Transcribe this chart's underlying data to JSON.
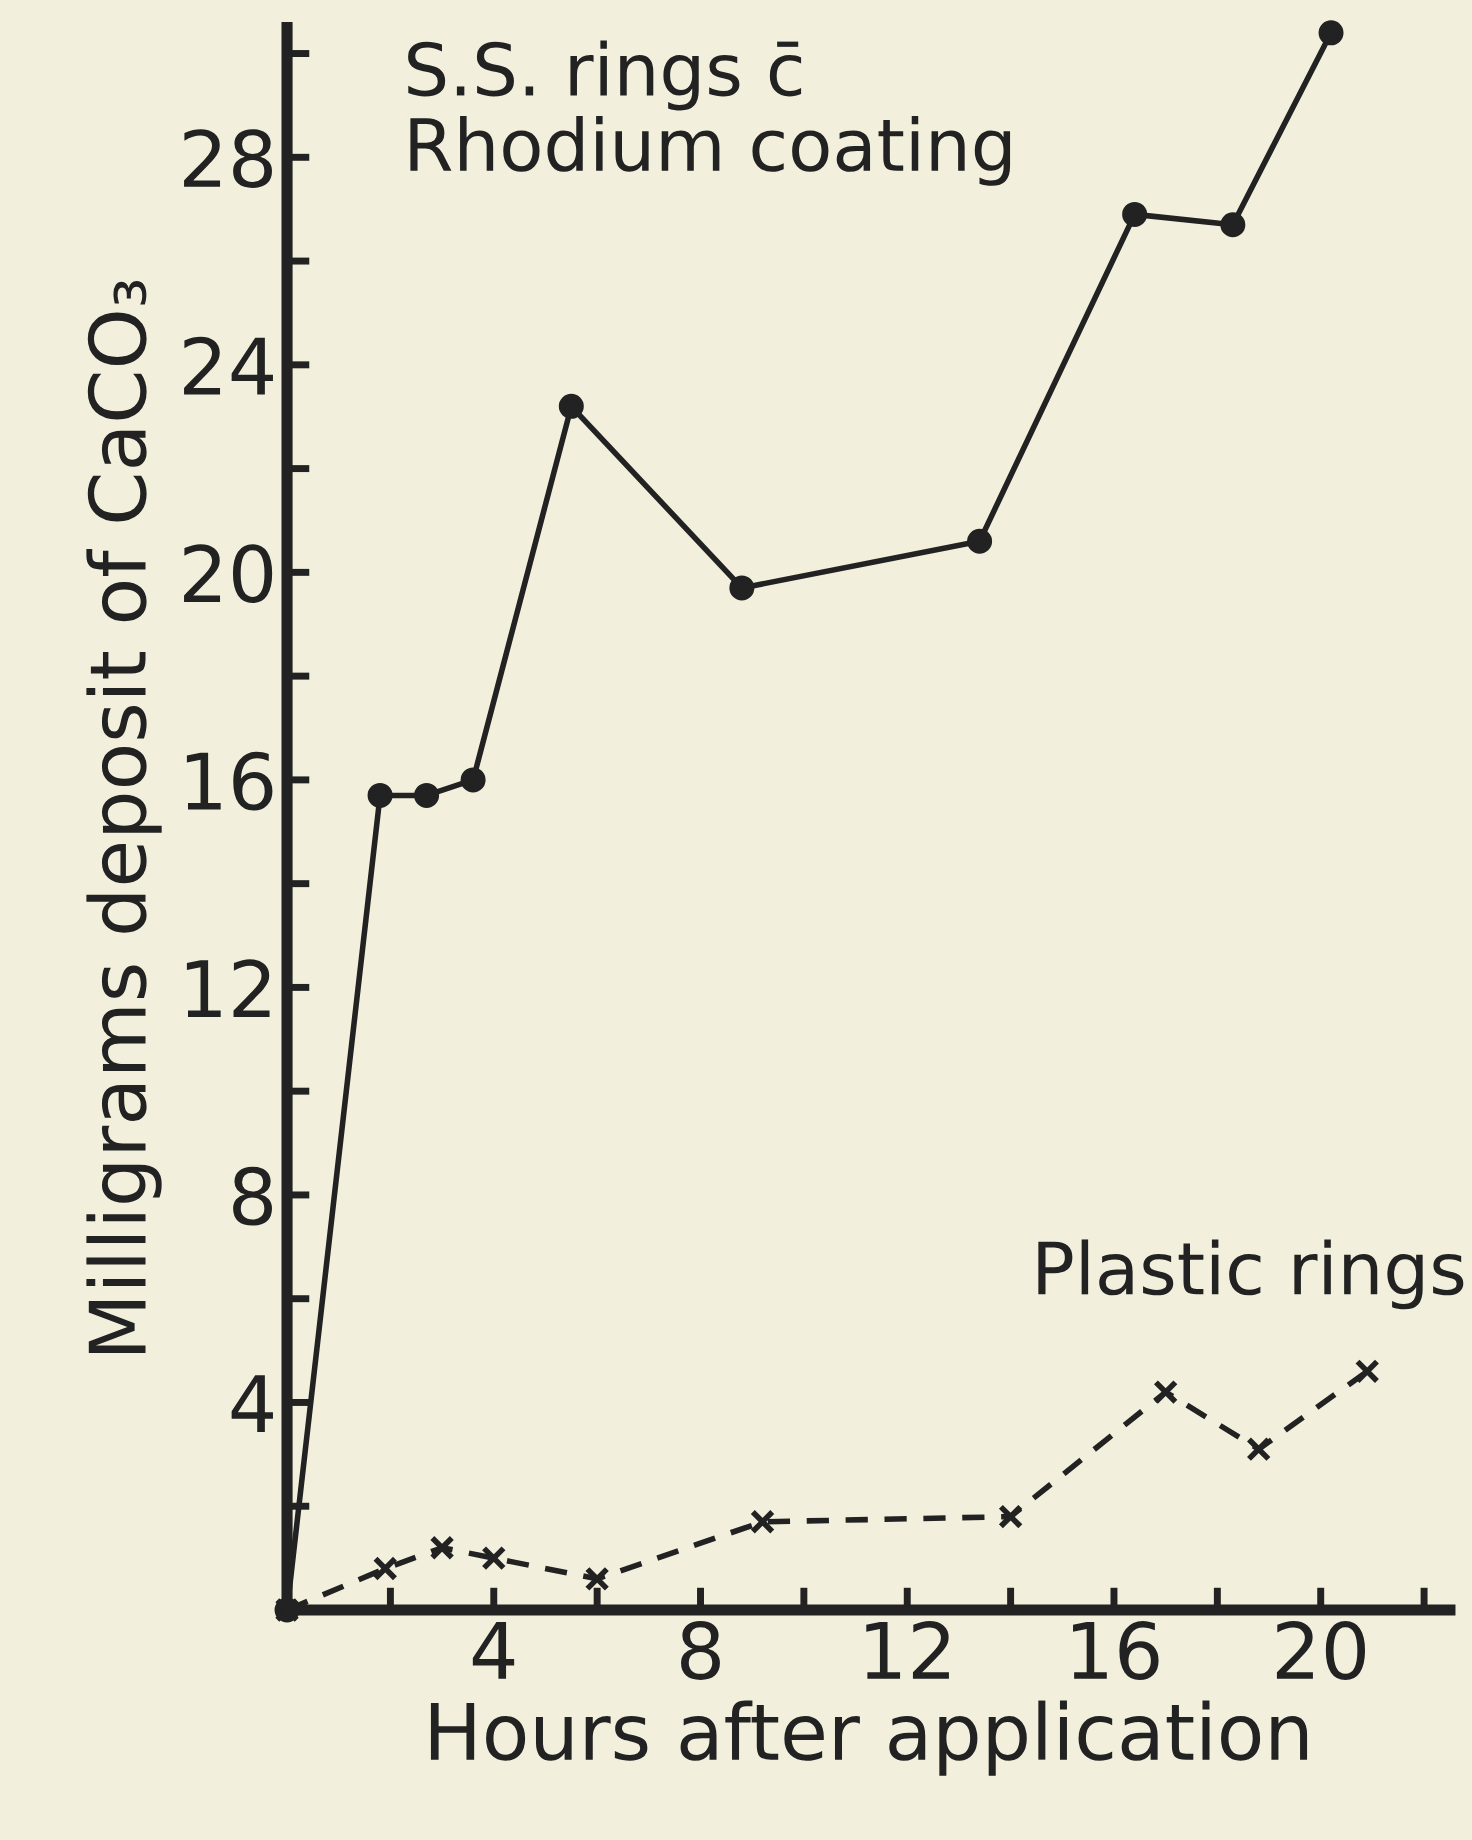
{
  "chart_data": {
    "type": "line",
    "xlabel": "Hours after application",
    "ylabel": "Milligrams deposit of CaCO₃",
    "xlim": [
      0,
      22.5
    ],
    "ylim": [
      0,
      30.5
    ],
    "xticks": [
      {
        "value": 2,
        "label": null
      },
      4,
      {
        "value": 6,
        "label": null
      },
      8,
      {
        "value": 10,
        "label": null
      },
      12,
      {
        "value": 14,
        "label": null
      },
      16,
      {
        "value": 18,
        "label": null
      },
      20,
      {
        "value": 22,
        "label": null
      }
    ],
    "yticks": [
      {
        "value": 2,
        "label": null
      },
      4,
      {
        "value": 6,
        "label": null
      },
      8,
      {
        "value": 10,
        "label": null
      },
      12,
      {
        "value": 14,
        "label": null
      },
      16,
      {
        "value": 18,
        "label": null
      },
      20,
      {
        "value": 22,
        "label": null
      },
      24,
      {
        "value": 26,
        "label": null
      },
      28,
      {
        "value": 30,
        "label": null
      }
    ],
    "grid": false,
    "legend": false,
    "series": [
      {
        "name": "S.S. rings c̄\nRhodium coating",
        "color": "#222222",
        "marker": "circle",
        "line_style": "solid",
        "x": [
          0,
          1.8,
          2.7,
          3.6,
          5.5,
          8.8,
          13.4,
          16.4,
          18.3,
          20.2
        ],
        "values": [
          0,
          15.7,
          15.7,
          16.0,
          23.2,
          19.7,
          20.6,
          26.9,
          26.7,
          30.4
        ]
      },
      {
        "name": "Plastic rings",
        "color": "#222222",
        "marker": "cross",
        "line_style": "dashed",
        "x": [
          0,
          1.9,
          3.0,
          4.0,
          6.0,
          9.2,
          14.0,
          17.0,
          18.8,
          20.9
        ],
        "values": [
          0,
          0.8,
          1.2,
          1.0,
          0.6,
          1.7,
          1.8,
          4.2,
          3.1,
          4.6
        ]
      }
    ]
  }
}
